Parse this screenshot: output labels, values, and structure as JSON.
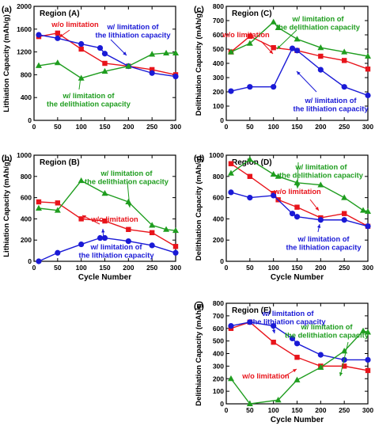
{
  "chart_data": [
    {
      "type": "line",
      "panel_label": "(a)",
      "title": "Region (A)",
      "xlabel": "",
      "ylabel": "Lithiation Capacity (mAh/g)",
      "xlim": [
        0,
        300
      ],
      "ylim": [
        0,
        2000
      ],
      "xticks": [
        0,
        50,
        100,
        150,
        200,
        250,
        300
      ],
      "yticks": [
        0,
        400,
        800,
        1200,
        1600,
        2000
      ],
      "series": [
        {
          "name": "w/o limitation",
          "color": "#e8141b",
          "marker": "square",
          "x": [
            10,
            50,
            100,
            150,
            200,
            250,
            300
          ],
          "y": [
            1470,
            1530,
            1250,
            1000,
            950,
            890,
            800
          ]
        },
        {
          "name": "w/ limitation of the lithiation capacity",
          "color": "#1a1ad6",
          "marker": "circle",
          "x": [
            10,
            50,
            100,
            140,
            150,
            200,
            250,
            300
          ],
          "y": [
            1500,
            1440,
            1340,
            1270,
            1170,
            950,
            830,
            770
          ]
        },
        {
          "name": "w/ limitation of the delithiation capacity",
          "color": "#1f9d1f",
          "marker": "triangle",
          "x": [
            10,
            50,
            100,
            150,
            200,
            250,
            280,
            300
          ],
          "y": [
            960,
            1010,
            740,
            860,
            950,
            1160,
            1180,
            1180
          ]
        }
      ],
      "annotations": [
        {
          "lines": [
            "w/o limitation"
          ],
          "color": "#e8141b"
        },
        {
          "lines": [
            "w/ limitation of",
            "the lithiation capacity"
          ],
          "color": "#1a1ad6"
        },
        {
          "lines": [
            "w/ limitation of",
            "the delithiation capacity"
          ],
          "color": "#1f9d1f"
        }
      ]
    },
    {
      "type": "line",
      "panel_label": "(b)",
      "title": "Region (B)",
      "xlabel": "Cycle Number",
      "ylabel": "Lithiation Capacity (mAh/g)",
      "xlim": [
        0,
        300
      ],
      "ylim": [
        0,
        1000
      ],
      "xticks": [
        0,
        50,
        100,
        150,
        200,
        250,
        300
      ],
      "yticks": [
        0,
        200,
        400,
        600,
        800,
        1000
      ],
      "series": [
        {
          "name": "w/o limitation",
          "color": "#e8141b",
          "marker": "square",
          "x": [
            10,
            50,
            100,
            150,
            200,
            250,
            300
          ],
          "y": [
            560,
            550,
            400,
            380,
            300,
            270,
            140
          ]
        },
        {
          "name": "w/ limitation of the lithiation capacity",
          "color": "#1a1ad6",
          "marker": "circle",
          "x": [
            10,
            50,
            100,
            140,
            150,
            200,
            250,
            300
          ],
          "y": [
            0,
            80,
            160,
            220,
            220,
            190,
            150,
            80
          ]
        },
        {
          "name": "w/ limitation of the delithiation capacity",
          "color": "#1f9d1f",
          "marker": "triangle",
          "x": [
            10,
            50,
            100,
            150,
            200,
            250,
            280,
            300
          ],
          "y": [
            500,
            480,
            760,
            640,
            560,
            340,
            300,
            290
          ]
        }
      ],
      "annotations": [
        {
          "lines": [
            "w/ limitation of",
            "the delithiation capacity"
          ],
          "color": "#1f9d1f"
        },
        {
          "lines": [
            "w/o limitation"
          ],
          "color": "#e8141b"
        },
        {
          "lines": [
            "w/ limitation of",
            "the lithiation capacity"
          ],
          "color": "#1a1ad6"
        }
      ]
    },
    {
      "type": "line",
      "panel_label": "(c)",
      "title": "Region (C)",
      "xlabel": "",
      "ylabel": "Delithiation Capacity (mAh/g)",
      "xlim": [
        0,
        300
      ],
      "ylim": [
        0,
        800
      ],
      "xticks": [
        0,
        50,
        100,
        150,
        200,
        250,
        300
      ],
      "yticks": [
        0,
        100,
        200,
        300,
        400,
        500,
        600,
        700,
        800
      ],
      "series": [
        {
          "name": "w/o limitation",
          "color": "#e8141b",
          "marker": "square",
          "x": [
            10,
            50,
            100,
            150,
            200,
            250,
            300
          ],
          "y": [
            480,
            590,
            510,
            490,
            450,
            420,
            360
          ]
        },
        {
          "name": "w/ limitation of the lithiation capacity",
          "color": "#1a1ad6",
          "marker": "circle",
          "x": [
            10,
            50,
            100,
            140,
            150,
            200,
            250,
            300
          ],
          "y": [
            205,
            235,
            235,
            505,
            490,
            355,
            235,
            175
          ]
        },
        {
          "name": "w/ limitation of the delithiation capacity",
          "color": "#1f9d1f",
          "marker": "triangle",
          "x": [
            10,
            50,
            100,
            110,
            150,
            200,
            250,
            300
          ],
          "y": [
            480,
            540,
            690,
            650,
            570,
            510,
            480,
            450
          ]
        }
      ],
      "annotations": [
        {
          "lines": [
            "w/ limitation of",
            "the delithiation capacity"
          ],
          "color": "#1f9d1f"
        },
        {
          "lines": [
            "w/o limitation"
          ],
          "color": "#e8141b"
        },
        {
          "lines": [
            "w/ limitation of",
            "the lithiation capacity"
          ],
          "color": "#1a1ad6"
        }
      ]
    },
    {
      "type": "line",
      "panel_label": "(d)",
      "title": "Region (D)",
      "xlabel": "Cycle Number",
      "ylabel": "Delithiation Capacity (mAh/g)",
      "xlim": [
        0,
        300
      ],
      "ylim": [
        0,
        1000
      ],
      "xticks": [
        0,
        50,
        100,
        150,
        200,
        250,
        300
      ],
      "yticks": [
        0,
        200,
        400,
        600,
        800,
        1000
      ],
      "series": [
        {
          "name": "w/o limitation",
          "color": "#e8141b",
          "marker": "square",
          "x": [
            10,
            50,
            100,
            110,
            150,
            200,
            250,
            300
          ],
          "y": [
            920,
            800,
            640,
            580,
            510,
            410,
            450,
            330
          ]
        },
        {
          "name": "w/ limitation of the lithiation capacity",
          "color": "#1a1ad6",
          "marker": "circle",
          "x": [
            10,
            50,
            100,
            140,
            150,
            200,
            250,
            300
          ],
          "y": [
            650,
            600,
            620,
            450,
            420,
            390,
            390,
            330
          ]
        },
        {
          "name": "w/ limitation of the delithiation capacity",
          "color": "#1f9d1f",
          "marker": "triangle",
          "x": [
            10,
            50,
            100,
            110,
            150,
            200,
            250,
            290,
            300
          ],
          "y": [
            830,
            960,
            820,
            800,
            740,
            720,
            600,
            480,
            470
          ]
        }
      ],
      "annotations": [
        {
          "lines": [
            "w/ limitation of",
            "the delithiation capacity"
          ],
          "color": "#1f9d1f"
        },
        {
          "lines": [
            "w/o limitation"
          ],
          "color": "#e8141b"
        },
        {
          "lines": [
            "w/ limitation of",
            "the lithiation capacity"
          ],
          "color": "#1a1ad6"
        }
      ]
    },
    {
      "type": "line",
      "panel_label": "(e)",
      "title": "Region (E)",
      "xlabel": "Cycle Number",
      "ylabel": "Delithiation Capacity (mAh/g)",
      "xlim": [
        0,
        300
      ],
      "ylim": [
        0,
        800
      ],
      "xticks": [
        0,
        50,
        100,
        150,
        200,
        250,
        300
      ],
      "yticks": [
        0,
        100,
        200,
        300,
        400,
        500,
        600,
        700,
        800
      ],
      "series": [
        {
          "name": "w/o limitation",
          "color": "#e8141b",
          "marker": "square",
          "x": [
            10,
            50,
            100,
            150,
            200,
            250,
            300
          ],
          "y": [
            600,
            650,
            490,
            370,
            300,
            300,
            265
          ]
        },
        {
          "name": "w/ limitation of the lithiation capacity",
          "color": "#1a1ad6",
          "marker": "circle",
          "x": [
            10,
            50,
            100,
            140,
            150,
            200,
            250,
            300
          ],
          "y": [
            620,
            650,
            620,
            520,
            480,
            390,
            350,
            350
          ]
        },
        {
          "name": "w/ limitation of the delithiation capacity",
          "color": "#1f9d1f",
          "marker": "triangle",
          "x": [
            10,
            50,
            110,
            150,
            200,
            250,
            290,
            300
          ],
          "y": [
            200,
            0,
            30,
            190,
            290,
            420,
            580,
            570
          ]
        }
      ],
      "annotations": [
        {
          "lines": [
            "w/ limitation of",
            "the lithiation capacity"
          ],
          "color": "#1a1ad6"
        },
        {
          "lines": [
            "w/ limitation of",
            "the delithiation capacity"
          ],
          "color": "#1f9d1f"
        },
        {
          "lines": [
            "w/o limitation"
          ],
          "color": "#e8141b"
        }
      ]
    }
  ]
}
